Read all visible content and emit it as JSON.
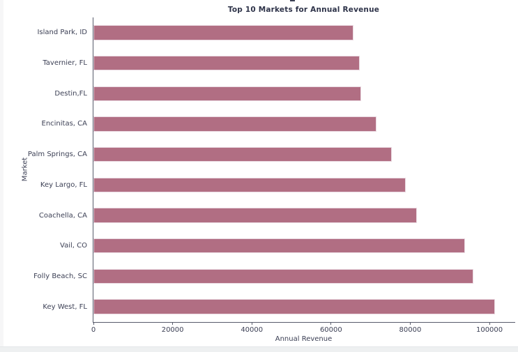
{
  "page": {
    "background_color": "#ffffff",
    "page_margin_color": "#f6f6f7",
    "bottom_strip_color": "#eef0f1"
  },
  "chart_data": {
    "type": "bar",
    "orientation": "horizontal",
    "title": "Top 10 Markets for Annual Revenue",
    "xlabel": "Annual Revenue",
    "ylabel": "Market",
    "categories": [
      "Island Park, ID",
      "Tavernier, FL",
      "Destin,FL",
      "Encinitas, CA",
      "Palm Springs, CA",
      "Key Largo, FL",
      "Coachella, CA",
      "Vail, CO",
      "Folly Beach, SC",
      "Key West, FL"
    ],
    "values": [
      65700,
      67200,
      67600,
      71500,
      75400,
      78900,
      81700,
      93800,
      95900,
      101400
    ],
    "x_ticks": [
      0,
      20000,
      40000,
      60000,
      80000,
      100000
    ],
    "xlim": [
      0,
      106500
    ],
    "grid": false,
    "legend": null,
    "bar_height_fraction": 0.49,
    "bar_color": "#b16e83",
    "bar_edge_color": "#e9d8e0",
    "axis_color": "#565a6a",
    "tick_label_color": "#3b3f54",
    "title_color": "#2e3349"
  }
}
